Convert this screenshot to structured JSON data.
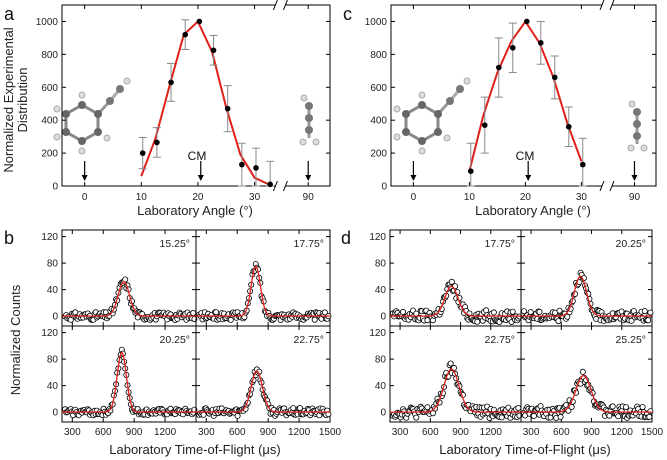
{
  "panel_labels": [
    "a",
    "b",
    "c",
    "d"
  ],
  "labels": {
    "y_top_line1": "Normalized Experimental",
    "y_top_line2": "Distribution",
    "y_bottom": "Normalized Counts",
    "x_top": "Laboratory Angle (°)",
    "x_bottom": "Laboratory Time-of-Flight (μs)",
    "cm": "CM"
  },
  "colors": {
    "fit": "#e0201b",
    "points": "#000000",
    "axis": "#000000"
  },
  "chart_data": [
    {
      "id": "a",
      "type": "scatter",
      "xlabel": "Laboratory Angle (°)",
      "ylabel": "Normalized Experimental Distribution",
      "xlim": [
        -4,
        94
      ],
      "ylim": [
        0,
        1100
      ],
      "x_ticks": [
        "0",
        "10",
        "20",
        "30",
        "90"
      ],
      "y_ticks": [
        "0",
        "200",
        "400",
        "600",
        "800",
        "1000"
      ],
      "axis_break": "after 33°",
      "points": [
        {
          "x": 10.25,
          "y": 200,
          "err": 95
        },
        {
          "x": 12.75,
          "y": 265,
          "err": 90
        },
        {
          "x": 15.25,
          "y": 630,
          "err": 115
        },
        {
          "x": 17.75,
          "y": 920,
          "err": 90
        },
        {
          "x": 20.25,
          "y": 1000,
          "err": 0
        },
        {
          "x": 22.75,
          "y": 825,
          "err": 90
        },
        {
          "x": 25.25,
          "y": 470,
          "err": 140
        },
        {
          "x": 27.75,
          "y": 130,
          "err": 130
        },
        {
          "x": 30.25,
          "y": 110,
          "err": 120
        },
        {
          "x": 32.75,
          "y": 10,
          "err": 140
        }
      ],
      "fit": [
        [
          10,
          60
        ],
        [
          12.5,
          290
        ],
        [
          15,
          610
        ],
        [
          17.5,
          920
        ],
        [
          20,
          1000
        ],
        [
          22.5,
          815
        ],
        [
          25,
          475
        ],
        [
          27.5,
          190
        ],
        [
          30,
          50
        ],
        [
          32.5,
          10
        ]
      ],
      "arrows": [
        0,
        20.5,
        90
      ],
      "cm_angle": 20.5
    },
    {
      "id": "c",
      "type": "scatter",
      "xlabel": "Laboratory Angle (°)",
      "ylabel": "",
      "xlim": [
        -4,
        94
      ],
      "ylim": [
        0,
        1100
      ],
      "x_ticks": [
        "0",
        "10",
        "20",
        "30",
        "90"
      ],
      "y_ticks": [
        "0",
        "200",
        "400",
        "600",
        "800",
        "1000"
      ],
      "axis_break": "after 33°",
      "points": [
        {
          "x": 10.25,
          "y": 90,
          "err": 170
        },
        {
          "x": 12.75,
          "y": 370,
          "err": 170
        },
        {
          "x": 15.25,
          "y": 720,
          "err": 180
        },
        {
          "x": 17.75,
          "y": 840,
          "err": 150
        },
        {
          "x": 20.25,
          "y": 1000,
          "err": 0
        },
        {
          "x": 22.75,
          "y": 870,
          "err": 130
        },
        {
          "x": 25.25,
          "y": 660,
          "err": 130
        },
        {
          "x": 27.75,
          "y": 360,
          "err": 120
        },
        {
          "x": 30.25,
          "y": 130,
          "err": 160
        }
      ],
      "fit": [
        [
          10,
          90
        ],
        [
          12.5,
          430
        ],
        [
          15,
          690
        ],
        [
          17.5,
          880
        ],
        [
          20,
          1000
        ],
        [
          22.5,
          870
        ],
        [
          25,
          660
        ],
        [
          27.5,
          380
        ],
        [
          30,
          150
        ]
      ],
      "arrows": [
        0,
        20.5,
        90
      ],
      "cm_angle": 20.5
    },
    {
      "id": "b",
      "type": "scatter",
      "xlabel": "Laboratory Time-of-Flight (μs)",
      "ylabel": "Normalized Counts",
      "xlim": [
        200,
        1500
      ],
      "ylim": [
        -15,
        130
      ],
      "x_ticks": [
        "300",
        "600",
        "900",
        "1200",
        "1500"
      ],
      "y_ticks": [
        "0",
        "40",
        "80",
        "120"
      ],
      "subplots": [
        {
          "label": "15.25°",
          "peak_center": 800,
          "peak_height": 52,
          "width": 55,
          "noise": 6
        },
        {
          "label": "17.75°",
          "peak_center": 780,
          "peak_height": 75,
          "width": 45,
          "noise": 6
        },
        {
          "label": "20.25°",
          "peak_center": 780,
          "peak_height": 90,
          "width": 45,
          "noise": 5
        },
        {
          "label": "22.75°",
          "peak_center": 790,
          "peak_height": 62,
          "width": 55,
          "noise": 6
        }
      ]
    },
    {
      "id": "d",
      "type": "scatter",
      "xlabel": "Laboratory Time-of-Flight (μs)",
      "ylabel": "",
      "xlim": [
        200,
        1500
      ],
      "ylim": [
        -15,
        130
      ],
      "x_ticks": [
        "300",
        "600",
        "900",
        "1200",
        "1500"
      ],
      "y_ticks": [
        "0",
        "40",
        "80",
        "120"
      ],
      "subplots": [
        {
          "label": "17.75°",
          "peak_center": 810,
          "peak_height": 45,
          "width": 65,
          "noise": 9
        },
        {
          "label": "20.25°",
          "peak_center": 790,
          "peak_height": 60,
          "width": 60,
          "noise": 8
        },
        {
          "label": "22.75°",
          "peak_center": 810,
          "peak_height": 65,
          "width": 75,
          "noise": 9
        },
        {
          "label": "25.25°",
          "peak_center": 820,
          "peak_height": 55,
          "width": 75,
          "noise": 9
        }
      ]
    }
  ]
}
